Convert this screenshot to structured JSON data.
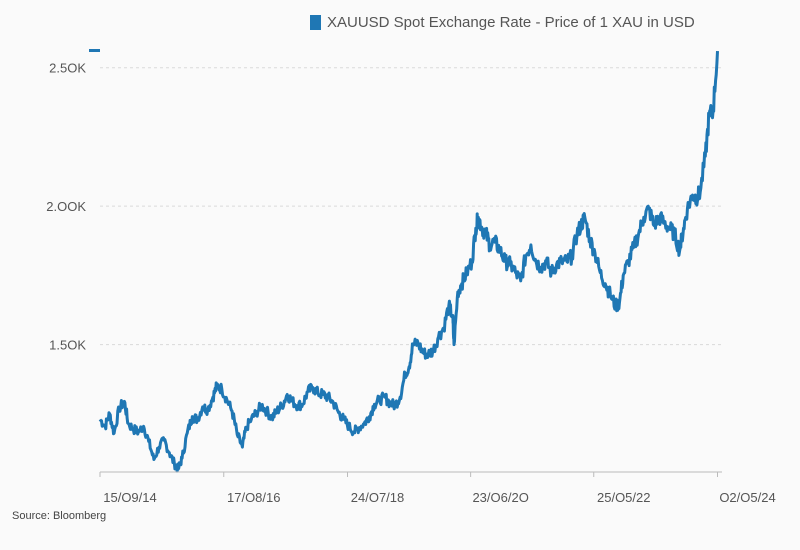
{
  "legend": {
    "label": "XAUUSD Spot Exchange Rate - Price of 1 XAU in USD",
    "color": "#1f77b4"
  },
  "source": "Source: Bloomberg",
  "colors": {
    "line": "#1f77b4",
    "grid": "#d9d9d9",
    "axis_text": "#555555"
  },
  "chart_data": {
    "type": "line",
    "title": "",
    "series_name": "XAUUSD Spot Exchange Rate - Price of 1 XAU in USD",
    "xlabel": "",
    "ylabel": "",
    "xlim": [
      2014.7,
      2024.4
    ],
    "ylim": [
      1040,
      2600
    ],
    "y_ticks": [
      1500,
      2000,
      2500
    ],
    "y_tick_labels": [
      "1.5OK",
      "2.OOK",
      "2.5OK"
    ],
    "x_ticks": [
      2014.7,
      2016.63,
      2018.56,
      2020.48,
      2022.4,
      2024.33
    ],
    "x_tick_labels": [
      "15/O9/14",
      "17/O8/16",
      "24/O7/18",
      "23/O6/2O",
      "25/O5/22",
      "O2/O5/24"
    ],
    "x": [
      2014.7,
      2014.78,
      2014.85,
      2014.92,
      2015.0,
      2015.08,
      2015.14,
      2015.22,
      2015.3,
      2015.38,
      2015.46,
      2015.54,
      2015.62,
      2015.7,
      2015.78,
      2015.86,
      2015.92,
      2015.98,
      2016.06,
      2016.14,
      2016.22,
      2016.3,
      2016.38,
      2016.46,
      2016.52,
      2016.6,
      2016.68,
      2016.76,
      2016.84,
      2016.92,
      2016.98,
      2017.06,
      2017.14,
      2017.22,
      2017.3,
      2017.38,
      2017.46,
      2017.54,
      2017.62,
      2017.7,
      2017.78,
      2017.86,
      2017.94,
      2018.02,
      2018.1,
      2018.18,
      2018.26,
      2018.34,
      2018.42,
      2018.5,
      2018.58,
      2018.66,
      2018.74,
      2018.82,
      2018.9,
      2018.98,
      2019.06,
      2019.14,
      2019.22,
      2019.3,
      2019.38,
      2019.46,
      2019.52,
      2019.58,
      2019.66,
      2019.74,
      2019.82,
      2019.9,
      2019.98,
      2020.06,
      2020.14,
      2020.2,
      2020.22,
      2020.28,
      2020.34,
      2020.42,
      2020.5,
      2020.56,
      2020.6,
      2020.66,
      2020.72,
      2020.78,
      2020.86,
      2020.94,
      2021.02,
      2021.1,
      2021.18,
      2021.26,
      2021.34,
      2021.42,
      2021.5,
      2021.58,
      2021.66,
      2021.74,
      2021.82,
      2021.9,
      2021.98,
      2022.06,
      2022.14,
      2022.2,
      2022.26,
      2022.34,
      2022.42,
      2022.5,
      2022.58,
      2022.66,
      2022.74,
      2022.8,
      2022.86,
      2022.94,
      2023.02,
      2023.1,
      2023.18,
      2023.26,
      2023.34,
      2023.42,
      2023.5,
      2023.58,
      2023.66,
      2023.74,
      2023.8,
      2023.86,
      2023.94,
      2024.0,
      2024.06,
      2024.14,
      2024.2,
      2024.26,
      2024.33
    ],
    "y": [
      1230,
      1205,
      1250,
      1180,
      1270,
      1295,
      1215,
      1195,
      1185,
      1205,
      1150,
      1085,
      1130,
      1155,
      1110,
      1070,
      1050,
      1090,
      1180,
      1240,
      1230,
      1275,
      1265,
      1310,
      1350,
      1340,
      1300,
      1260,
      1175,
      1130,
      1200,
      1230,
      1255,
      1280,
      1260,
      1235,
      1260,
      1280,
      1320,
      1295,
      1280,
      1285,
      1330,
      1345,
      1325,
      1320,
      1310,
      1290,
      1255,
      1230,
      1205,
      1185,
      1200,
      1215,
      1240,
      1285,
      1300,
      1310,
      1290,
      1280,
      1310,
      1395,
      1420,
      1500,
      1505,
      1470,
      1465,
      1480,
      1530,
      1560,
      1640,
      1600,
      1500,
      1690,
      1720,
      1760,
      1800,
      1920,
      1960,
      1920,
      1900,
      1860,
      1870,
      1840,
      1800,
      1790,
      1760,
      1730,
      1820,
      1860,
      1800,
      1780,
      1800,
      1760,
      1790,
      1800,
      1800,
      1820,
      1900,
      1930,
      1960,
      1880,
      1830,
      1760,
      1720,
      1680,
      1640,
      1650,
      1750,
      1800,
      1850,
      1900,
      1960,
      1990,
      1930,
      1960,
      1940,
      1920,
      1900,
      1840,
      1920,
      1990,
      2040,
      2030,
      2050,
      2180,
      2330,
      2340,
      2560
    ]
  }
}
